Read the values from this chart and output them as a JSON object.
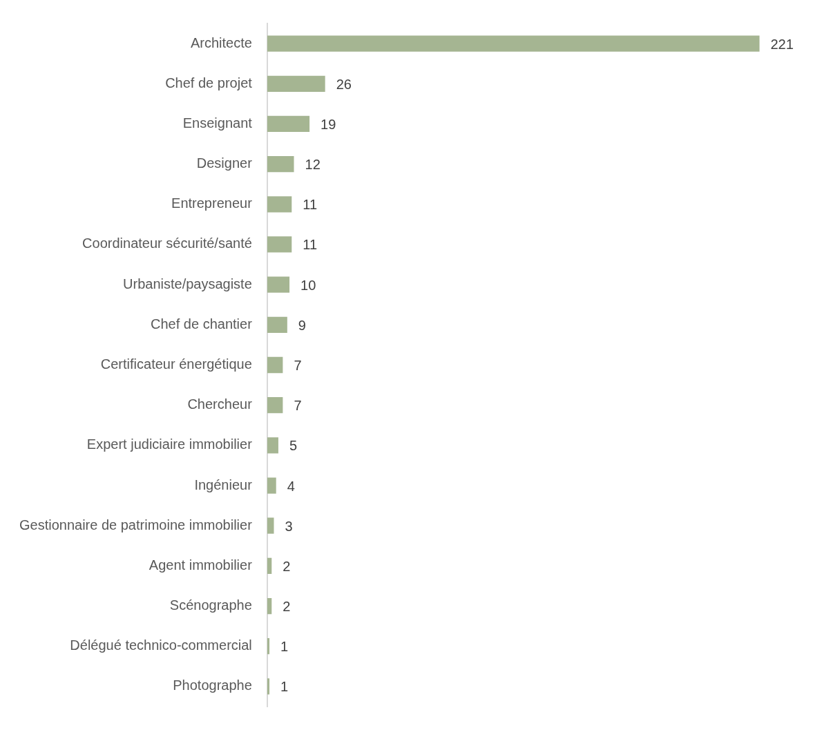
{
  "chart_data": {
    "type": "bar",
    "orientation": "horizontal",
    "categories": [
      "Architecte",
      "Chef de projet",
      "Enseignant",
      "Designer",
      "Entrepreneur",
      "Coordinateur sécurité/santé",
      "Urbaniste/paysagiste",
      "Chef de chantier",
      "Certificateur énergétique",
      "Chercheur",
      "Expert judiciaire immobilier",
      "Ingénieur",
      "Gestionnaire de patrimoine immobilier",
      "Agent immobilier",
      "Scénographe",
      "Délégué technico-commercial",
      "Photographe"
    ],
    "values": [
      221,
      26,
      19,
      12,
      11,
      11,
      10,
      9,
      7,
      7,
      5,
      4,
      3,
      2,
      2,
      1,
      1
    ],
    "color": "#a5b592",
    "data_labels": true
  }
}
